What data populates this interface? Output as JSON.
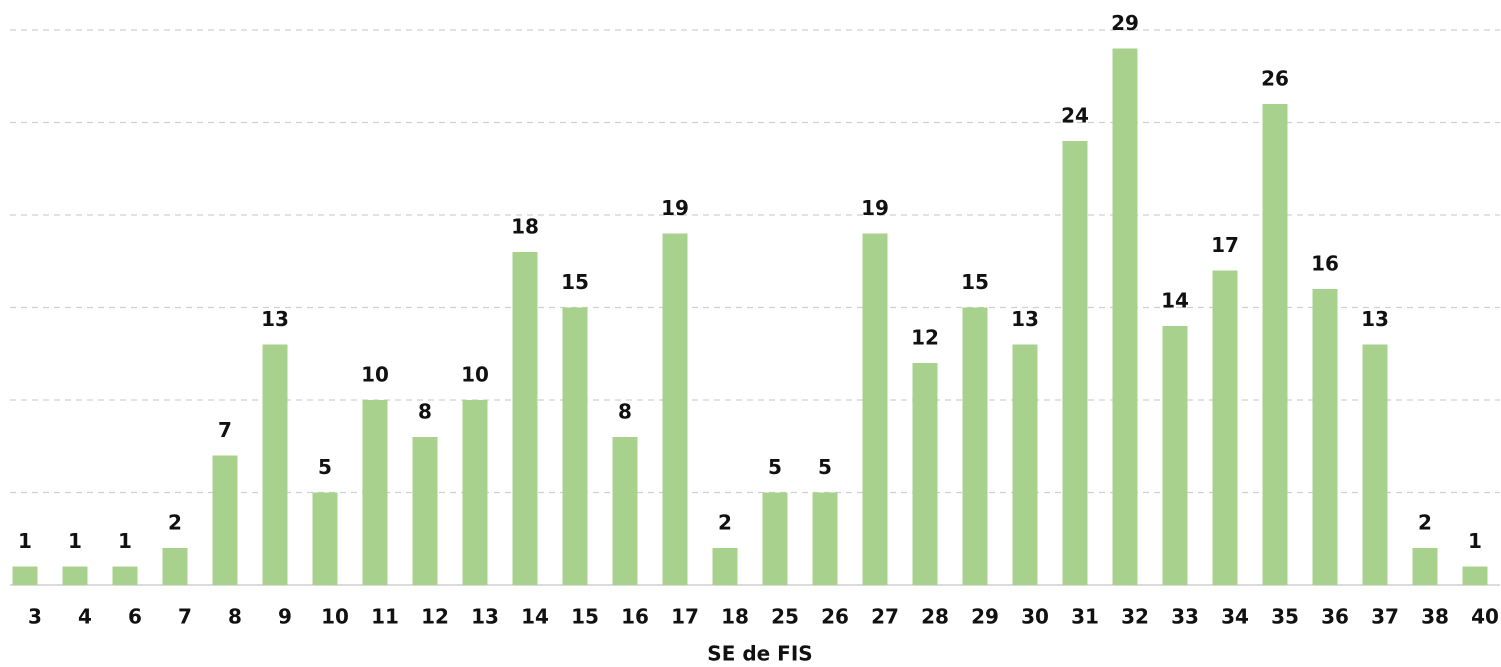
{
  "chart_data": {
    "type": "bar",
    "x_label": "SE de FIS",
    "categories": [
      "3",
      "4",
      "6",
      "7",
      "8",
      "9",
      "10",
      "11",
      "12",
      "13",
      "14",
      "15",
      "16",
      "17",
      "18",
      "25",
      "26",
      "27",
      "28",
      "29",
      "30",
      "31",
      "32",
      "33",
      "34",
      "35",
      "36",
      "37",
      "38",
      "40"
    ],
    "values": [
      1,
      1,
      1,
      2,
      7,
      13,
      5,
      10,
      8,
      10,
      18,
      15,
      8,
      19,
      2,
      5,
      5,
      19,
      12,
      15,
      13,
      24,
      29,
      14,
      17,
      26,
      16,
      13,
      2,
      1
    ],
    "color": "#a9d18e",
    "ylim": [
      0,
      30
    ],
    "yticks": [
      0,
      5,
      10,
      15,
      20,
      25,
      30
    ],
    "grid": true
  }
}
